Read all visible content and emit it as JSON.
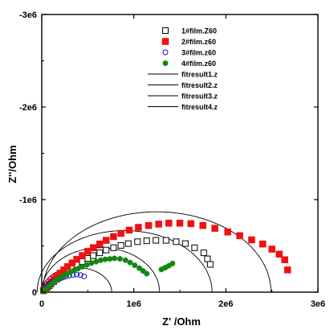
{
  "chart_data": {
    "type": "scatter",
    "title": "",
    "xlabel": "Z' /Ohm",
    "ylabel": "Z''/Ohm",
    "xlim": [
      0,
      3000000
    ],
    "ylim": [
      0,
      -3000000
    ],
    "y_axis_inverted": true,
    "x_ticks": [
      0,
      1000000,
      2000000,
      3000000
    ],
    "x_tick_labels": [
      "0",
      "1e6",
      "2e6",
      "3e6"
    ],
    "y_ticks": [
      0,
      -1000000,
      -2000000,
      -3000000
    ],
    "y_tick_labels": [
      "0",
      "-1e6",
      "-2e6",
      "-3e6"
    ],
    "grid": false,
    "legend_position": "top-center",
    "series": [
      {
        "name": "1#film.Z60",
        "marker": "square-open",
        "color": "#000000",
        "x": [
          20000,
          40000,
          60000,
          80000,
          100000,
          130000,
          160000,
          200000,
          240000,
          280000,
          330000,
          380000,
          440000,
          500000,
          560000,
          630000,
          700000,
          780000,
          860000,
          940000,
          1040000,
          1140000,
          1240000,
          1350000,
          1460000,
          1560000,
          1660000,
          1760000,
          1800000,
          1830000
        ],
        "y": [
          -15000,
          -30000,
          -50000,
          -70000,
          -90000,
          -115000,
          -140000,
          -170000,
          -200000,
          -230000,
          -265000,
          -295000,
          -330000,
          -365000,
          -395000,
          -425000,
          -455000,
          -480000,
          -505000,
          -525000,
          -545000,
          -555000,
          -560000,
          -560000,
          -545000,
          -525000,
          -480000,
          -425000,
          -360000,
          -300000
        ]
      },
      {
        "name": "2#film.z60",
        "marker": "square-filled",
        "color": "#ee1111",
        "x": [
          20000,
          40000,
          60000,
          80000,
          100000,
          130000,
          160000,
          200000,
          240000,
          280000,
          330000,
          380000,
          440000,
          500000,
          560000,
          630000,
          700000,
          780000,
          860000,
          950000,
          1050000,
          1160000,
          1270000,
          1380000,
          1500000,
          1620000,
          1750000,
          1880000,
          2020000,
          2150000,
          2280000,
          2400000,
          2500000,
          2580000,
          2640000,
          2670000
        ],
        "y": [
          -20000,
          -40000,
          -60000,
          -85000,
          -110000,
          -140000,
          -170000,
          -205000,
          -240000,
          -275000,
          -315000,
          -355000,
          -395000,
          -440000,
          -480000,
          -520000,
          -560000,
          -600000,
          -635000,
          -670000,
          -700000,
          -720000,
          -735000,
          -745000,
          -745000,
          -740000,
          -720000,
          -690000,
          -650000,
          -610000,
          -565000,
          -520000,
          -465000,
          -410000,
          -350000,
          -240000
        ]
      },
      {
        "name": "3#film.z60",
        "marker": "circle-open",
        "color": "#1111cc",
        "x": [
          15000,
          30000,
          45000,
          60000,
          75000,
          90000,
          110000,
          130000,
          155000,
          180000,
          205000,
          235000,
          265000,
          300000,
          340000,
          380000,
          420000,
          460000
        ],
        "y": [
          -20000,
          -35000,
          -50000,
          -65000,
          -78000,
          -90000,
          -103000,
          -115000,
          -127000,
          -138000,
          -149000,
          -160000,
          -170000,
          -179000,
          -186000,
          -190000,
          -185000,
          -170000
        ]
      },
      {
        "name": "4#film.z60",
        "marker": "hexagon-filled",
        "color": "#118811",
        "x": [
          15000,
          30000,
          50000,
          70000,
          90000,
          115000,
          140000,
          170000,
          200000,
          235000,
          270000,
          310000,
          350000,
          395000,
          440000,
          490000,
          540000,
          590000,
          640000,
          690000,
          740000,
          790000,
          850000,
          910000,
          960000,
          1010000,
          1060000,
          1100000,
          1140000,
          1300000,
          1340000,
          1380000,
          1420000
        ],
        "y": [
          -10000,
          -25000,
          -40000,
          -55000,
          -75000,
          -95000,
          -115000,
          -135000,
          -155000,
          -175000,
          -195000,
          -215000,
          -235000,
          -255000,
          -275000,
          -295000,
          -315000,
          -330000,
          -345000,
          -355000,
          -360000,
          -365000,
          -360000,
          -345000,
          -320000,
          -290000,
          -260000,
          -230000,
          -200000,
          -245000,
          -265000,
          -285000,
          -310000
        ]
      },
      {
        "name": "fitresult1.z",
        "marker": "line",
        "color": "#000000",
        "center": 900000,
        "radius": 950000,
        "depression": 0.7
      },
      {
        "name": "fitresult2.z",
        "marker": "line",
        "color": "#000000",
        "center": 1250000,
        "radius": 1240000,
        "depression": 0.7
      },
      {
        "name": "fitresult3.z",
        "marker": "line",
        "color": "#000000",
        "center": 380000,
        "radius": 380000,
        "depression": 0.7
      },
      {
        "name": "fitresult4.z",
        "marker": "line",
        "color": "#000000",
        "center": 640000,
        "radius": 640000,
        "depression": 0.75
      }
    ]
  }
}
